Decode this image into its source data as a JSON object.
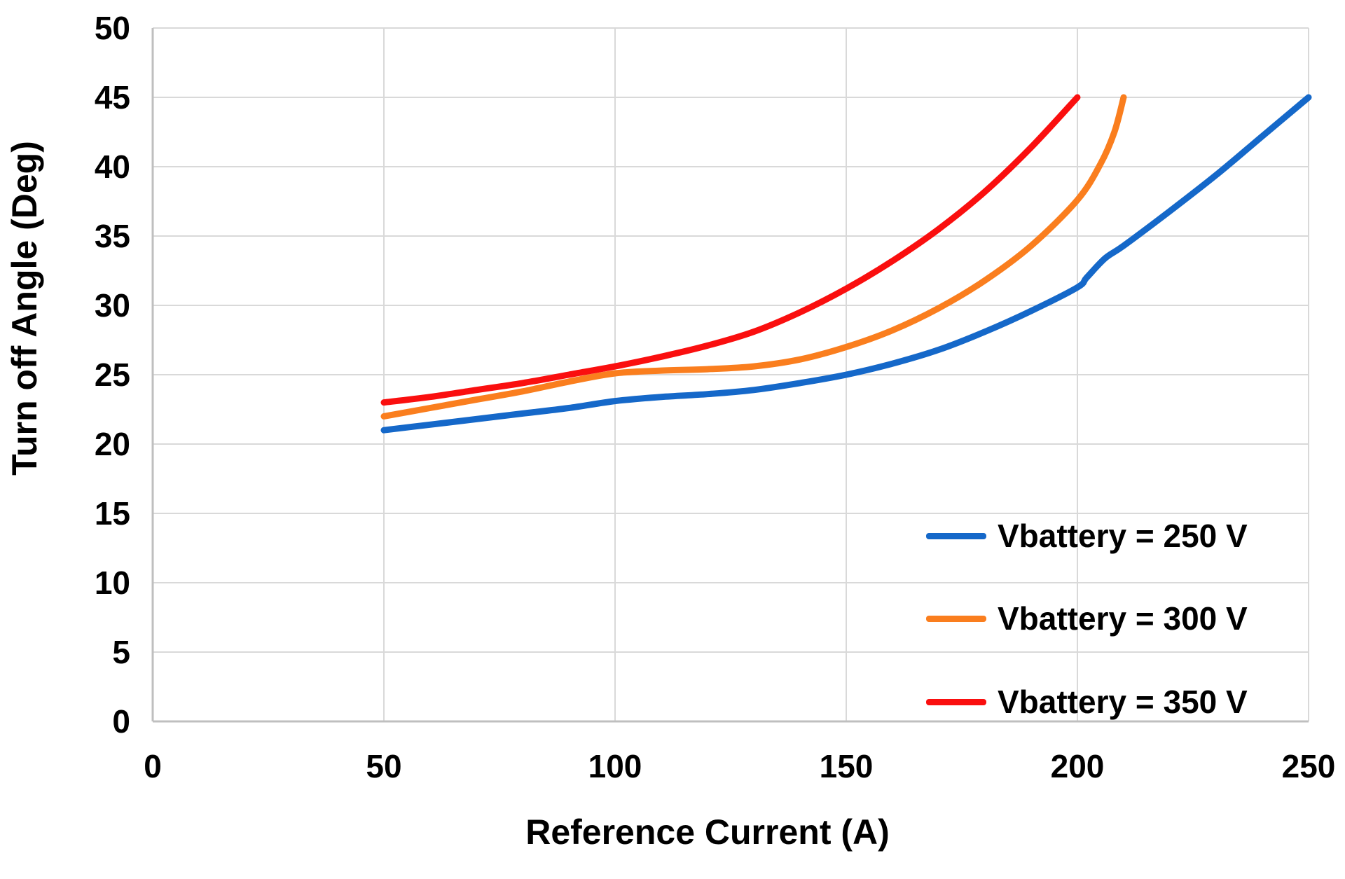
{
  "chart_data": {
    "type": "line",
    "title": "",
    "xlabel": "Reference Current (A)",
    "ylabel": "Turn off Angle (Deg)",
    "xlim": [
      0,
      250
    ],
    "ylim": [
      0,
      50
    ],
    "x_ticks": [
      0,
      50,
      100,
      150,
      200,
      250
    ],
    "y_ticks": [
      0,
      5,
      10,
      15,
      20,
      25,
      30,
      35,
      40,
      45,
      50
    ],
    "grid": true,
    "legend_position": "inside-lower-right",
    "colors": {
      "background": "#ffffff",
      "gridline": "#d9d9d9",
      "axis_line": "#bfbfbf",
      "text": "#000000"
    },
    "series": [
      {
        "name": "Vbattery = 250 V",
        "color": "#1568c9",
        "x": [
          50,
          60,
          70,
          80,
          90,
          100,
          110,
          120,
          130,
          140,
          150,
          160,
          170,
          180,
          190,
          200,
          202,
          206,
          210,
          220,
          230,
          240,
          250
        ],
        "y": [
          21.0,
          21.4,
          21.8,
          22.2,
          22.6,
          23.1,
          23.4,
          23.6,
          23.9,
          24.4,
          25.0,
          25.8,
          26.8,
          28.1,
          29.6,
          31.3,
          32.0,
          33.4,
          34.3,
          36.8,
          39.4,
          42.2,
          45.0
        ]
      },
      {
        "name": "Vbattery = 300 V",
        "color": "#fa7e1e",
        "x": [
          50,
          60,
          70,
          80,
          90,
          100,
          110,
          120,
          130,
          140,
          150,
          160,
          170,
          180,
          190,
          200,
          205,
          208,
          210
        ],
        "y": [
          22.0,
          22.6,
          23.2,
          23.8,
          24.5,
          25.1,
          25.3,
          25.4,
          25.6,
          26.1,
          27.0,
          28.2,
          29.8,
          31.8,
          34.3,
          37.6,
          40.2,
          42.5,
          45.0
        ]
      },
      {
        "name": "Vbattery = 350 V",
        "color": "#fa0f0f",
        "x": [
          50,
          60,
          70,
          80,
          90,
          100,
          110,
          120,
          130,
          140,
          150,
          160,
          170,
          180,
          190,
          200
        ],
        "y": [
          23.0,
          23.4,
          23.9,
          24.4,
          25.0,
          25.6,
          26.3,
          27.1,
          28.1,
          29.5,
          31.2,
          33.2,
          35.5,
          38.2,
          41.4,
          45.0
        ]
      }
    ]
  }
}
